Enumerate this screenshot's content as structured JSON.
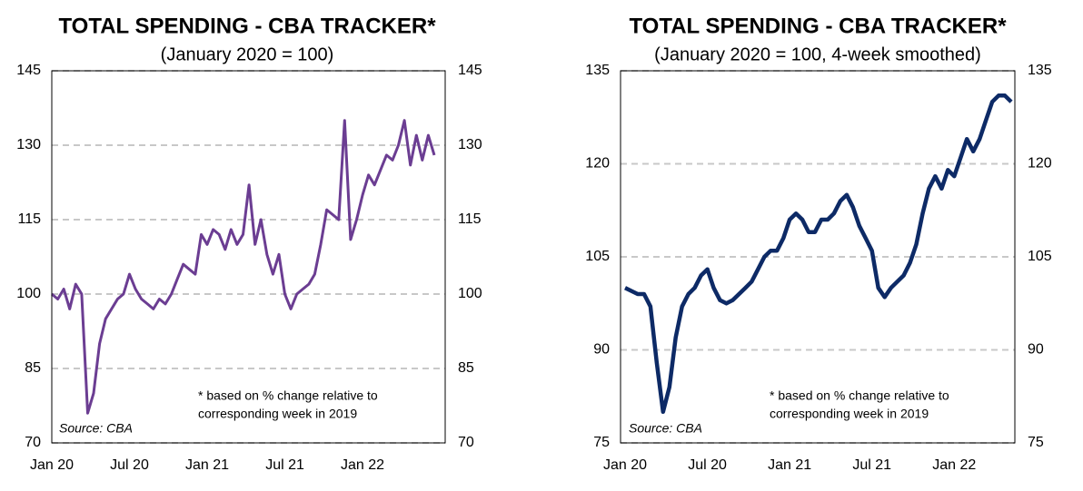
{
  "chart_data": [
    {
      "type": "line",
      "title": "TOTAL SPENDING - CBA TRACKER*",
      "subtitle": "(January 2020 = 100)",
      "note": [
        "*  based on % change relative to",
        "corresponding week in 2019"
      ],
      "source": "Source:  CBA",
      "categories": [
        "Jan 20",
        null,
        null,
        null,
        null,
        null,
        null,
        null,
        null,
        null,
        null,
        null,
        null,
        "Jul 20",
        null,
        null,
        null,
        null,
        null,
        null,
        null,
        null,
        null,
        null,
        null,
        null,
        "Jan 21",
        null,
        null,
        null,
        null,
        null,
        null,
        null,
        null,
        null,
        null,
        null,
        null,
        "Jul 21",
        null,
        null,
        null,
        null,
        null,
        null,
        null,
        null,
        null,
        null,
        null,
        null,
        "Jan 22",
        null,
        null,
        null,
        null,
        null,
        null,
        null,
        null,
        null,
        null,
        null,
        null
      ],
      "series": [
        {
          "name": "Total spending",
          "color": "#6b3d92",
          "values": [
            100,
            99,
            101,
            97,
            102,
            100,
            76,
            80,
            90,
            95,
            97,
            99,
            100,
            104,
            101,
            99,
            98,
            97,
            99,
            98,
            100,
            103,
            106,
            105,
            104,
            112,
            110,
            113,
            112,
            109,
            113,
            110,
            112,
            122,
            110,
            115,
            108,
            104,
            108,
            100,
            97,
            100,
            101,
            102,
            104,
            110,
            117,
            116,
            115,
            135,
            111,
            115,
            120,
            124,
            122,
            125,
            128,
            127,
            130,
            135,
            126,
            132,
            127,
            132,
            128
          ]
        }
      ],
      "ylim": [
        70,
        145
      ],
      "yticks": [
        70,
        85,
        100,
        115,
        130,
        145
      ],
      "grid": true
    },
    {
      "type": "line",
      "title": "TOTAL SPENDING - CBA TRACKER*",
      "subtitle": "(January 2020 = 100, 4-week smoothed)",
      "note": [
        "*  based on % change relative to",
        "corresponding week in 2019"
      ],
      "source": "Source:  CBA",
      "categories": [
        "Jan 20",
        null,
        null,
        null,
        null,
        null,
        null,
        null,
        null,
        null,
        null,
        null,
        null,
        "Jul 20",
        null,
        null,
        null,
        null,
        null,
        null,
        null,
        null,
        null,
        null,
        null,
        null,
        "Jan 21",
        null,
        null,
        null,
        null,
        null,
        null,
        null,
        null,
        null,
        null,
        null,
        null,
        "Jul 21",
        null,
        null,
        null,
        null,
        null,
        null,
        null,
        null,
        null,
        null,
        null,
        null,
        "Jan 22",
        null,
        null,
        null,
        null,
        null,
        null,
        null,
        null,
        null
      ],
      "series": [
        {
          "name": "Total spending (4-week smoothed)",
          "color": "#0d2a66",
          "values": [
            100,
            99.5,
            99,
            99,
            97,
            88,
            80,
            84,
            92,
            97,
            99,
            100,
            102,
            103,
            100,
            98,
            97.5,
            98,
            99,
            100,
            101,
            103,
            105,
            106,
            106,
            108,
            111,
            112,
            111,
            109,
            109,
            111,
            111,
            112,
            114,
            115,
            113,
            110,
            108,
            106,
            100,
            98.5,
            100,
            101,
            102,
            104,
            107,
            112,
            116,
            118,
            116,
            119,
            118,
            121,
            124,
            122,
            124,
            127,
            130,
            131,
            131,
            130
          ]
        }
      ],
      "ylim": [
        75,
        135
      ],
      "yticks": [
        75,
        90,
        105,
        120,
        135
      ],
      "grid": true
    }
  ]
}
